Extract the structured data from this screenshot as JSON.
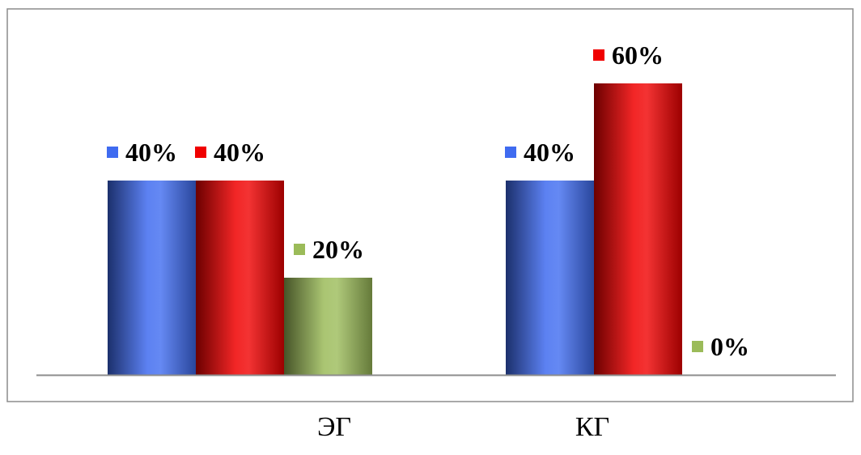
{
  "chart_data": {
    "type": "bar",
    "categories": [
      "ЭГ",
      "КГ"
    ],
    "series": [
      {
        "values": [
          40,
          40
        ],
        "labels": [
          "40%",
          "40%"
        ],
        "color": "#3F6BF0"
      },
      {
        "values": [
          40,
          60
        ],
        "labels": [
          "40%",
          "60%"
        ],
        "color": "#F00000"
      },
      {
        "values": [
          20,
          0
        ],
        "labels": [
          "20%",
          "0%"
        ],
        "color": "#9BBB59"
      }
    ],
    "ylim": [
      0,
      70
    ],
    "grid": false,
    "legend": "none",
    "colors": {
      "frame": "#8C8C8C",
      "axis": "#8C8C8C",
      "text": "#000000"
    }
  }
}
